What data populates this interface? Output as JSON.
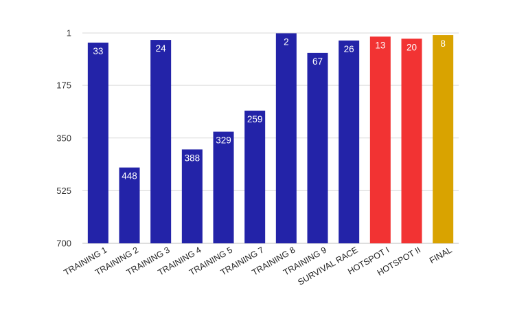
{
  "chart_data": {
    "type": "bar",
    "title": "",
    "xlabel": "",
    "ylabel": "",
    "y_axis_inverted": true,
    "ylim": [
      1,
      700
    ],
    "yticks": [
      1,
      175,
      350,
      525,
      700
    ],
    "grid": true,
    "legend": "none",
    "categories": [
      "TRAINING 1",
      "TRAINING 2",
      "TRAINING 3",
      "TRAINING 4",
      "TRAINING 5",
      "TRAINING 7",
      "TRAINING 8",
      "TRAINING 9",
      "SURVIVAL RACE",
      "HOTSPOT I",
      "HOTSPOT II",
      "FINAL"
    ],
    "values": [
      33,
      448,
      24,
      388,
      329,
      259,
      2,
      67,
      26,
      13,
      20,
      8
    ],
    "bar_colors": [
      "#2323a8",
      "#2323a8",
      "#2323a8",
      "#2323a8",
      "#2323a8",
      "#2323a8",
      "#2323a8",
      "#2323a8",
      "#2323a8",
      "#f23333",
      "#f23333",
      "#d9a300"
    ]
  }
}
